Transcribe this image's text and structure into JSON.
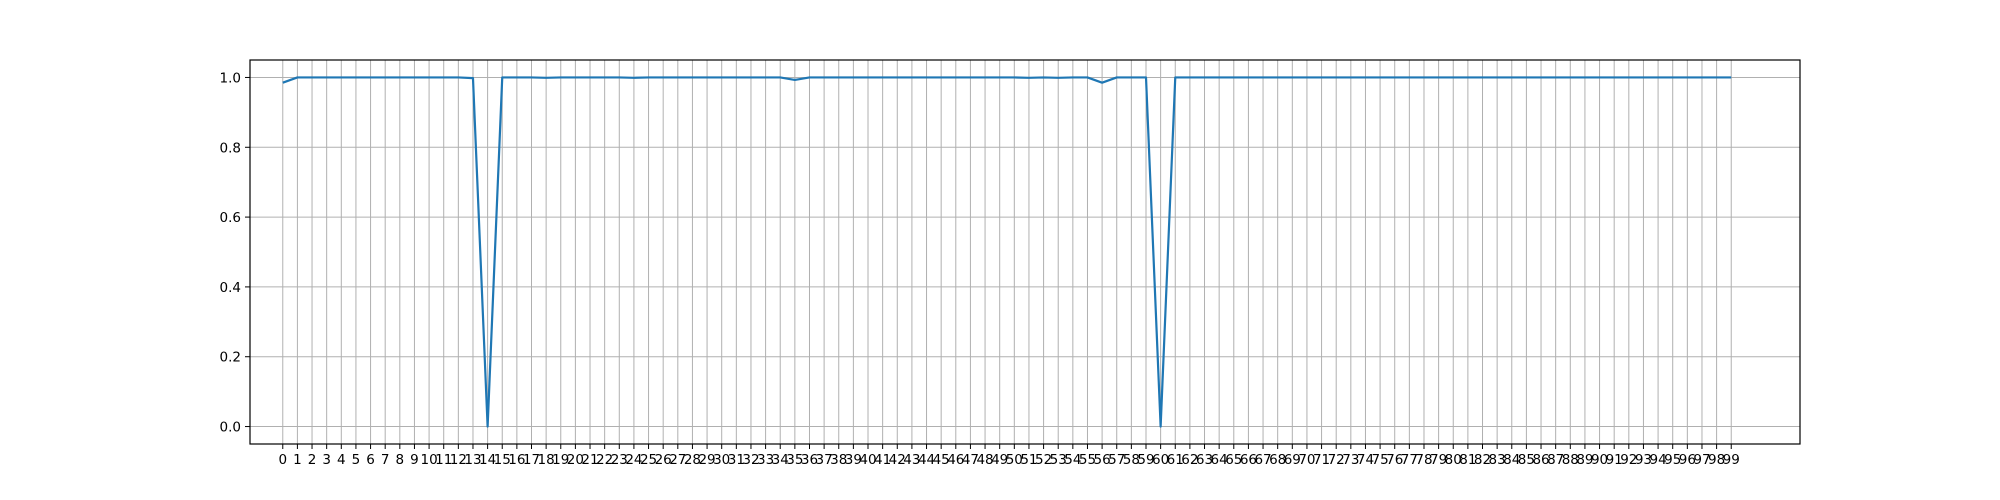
{
  "chart_data": {
    "type": "line",
    "title": "",
    "xlabel": "",
    "ylabel": "",
    "grid": true,
    "xlim": [
      -2.24,
      103.7
    ],
    "ylim": [
      -0.05,
      1.05
    ],
    "x_ticks": [
      0,
      1,
      2,
      3,
      4,
      5,
      6,
      7,
      8,
      9,
      10,
      11,
      12,
      13,
      14,
      15,
      16,
      17,
      18,
      19,
      20,
      21,
      22,
      23,
      24,
      25,
      26,
      27,
      28,
      29,
      30,
      31,
      32,
      33,
      34,
      35,
      36,
      37,
      38,
      39,
      40,
      41,
      42,
      43,
      44,
      45,
      46,
      47,
      48,
      49,
      50,
      51,
      52,
      53,
      54,
      55,
      56,
      57,
      58,
      59,
      60,
      61,
      62,
      63,
      64,
      65,
      66,
      67,
      68,
      69,
      70,
      71,
      72,
      73,
      74,
      75,
      76,
      77,
      78,
      79,
      80,
      81,
      82,
      83,
      84,
      85,
      86,
      87,
      88,
      89,
      90,
      91,
      92,
      93,
      94,
      95,
      96,
      97,
      98,
      99
    ],
    "y_ticks": [
      "0.0",
      "0.2",
      "0.4",
      "0.6",
      "0.8",
      "1.0"
    ],
    "colors": {
      "series": "#1f77b4"
    },
    "series": [
      {
        "values": [
          0.985,
          1.0,
          1.0,
          1.0,
          1.0,
          1.0,
          1.0,
          1.0,
          1.0,
          1.0,
          1.0,
          1.0,
          1.0,
          0.998,
          0.0,
          1.0,
          1.0,
          1.0,
          0.999,
          1.0,
          1.0,
          1.0,
          1.0,
          1.0,
          0.999,
          1.0,
          1.0,
          1.0,
          1.0,
          1.0,
          1.0,
          1.0,
          1.0,
          1.0,
          1.0,
          0.993,
          1.0,
          1.0,
          1.0,
          1.0,
          1.0,
          1.0,
          1.0,
          1.0,
          1.0,
          1.0,
          1.0,
          1.0,
          1.0,
          1.0,
          1.0,
          0.999,
          1.0,
          0.999,
          1.0,
          1.0,
          0.985,
          1.0,
          1.0,
          1.0,
          0.0,
          1.0,
          1.0,
          1.0,
          1.0,
          1.0,
          1.0,
          1.0,
          1.0,
          1.0,
          1.0,
          1.0,
          1.0,
          1.0,
          1.0,
          1.0,
          1.0,
          1.0,
          1.0,
          1.0,
          1.0,
          1.0,
          1.0,
          1.0,
          1.0,
          1.0,
          1.0,
          1.0,
          1.0,
          1.0,
          1.0,
          1.0,
          1.0,
          1.0,
          1.0,
          1.0,
          1.0,
          1.0,
          1.0,
          1.0
        ]
      }
    ]
  }
}
